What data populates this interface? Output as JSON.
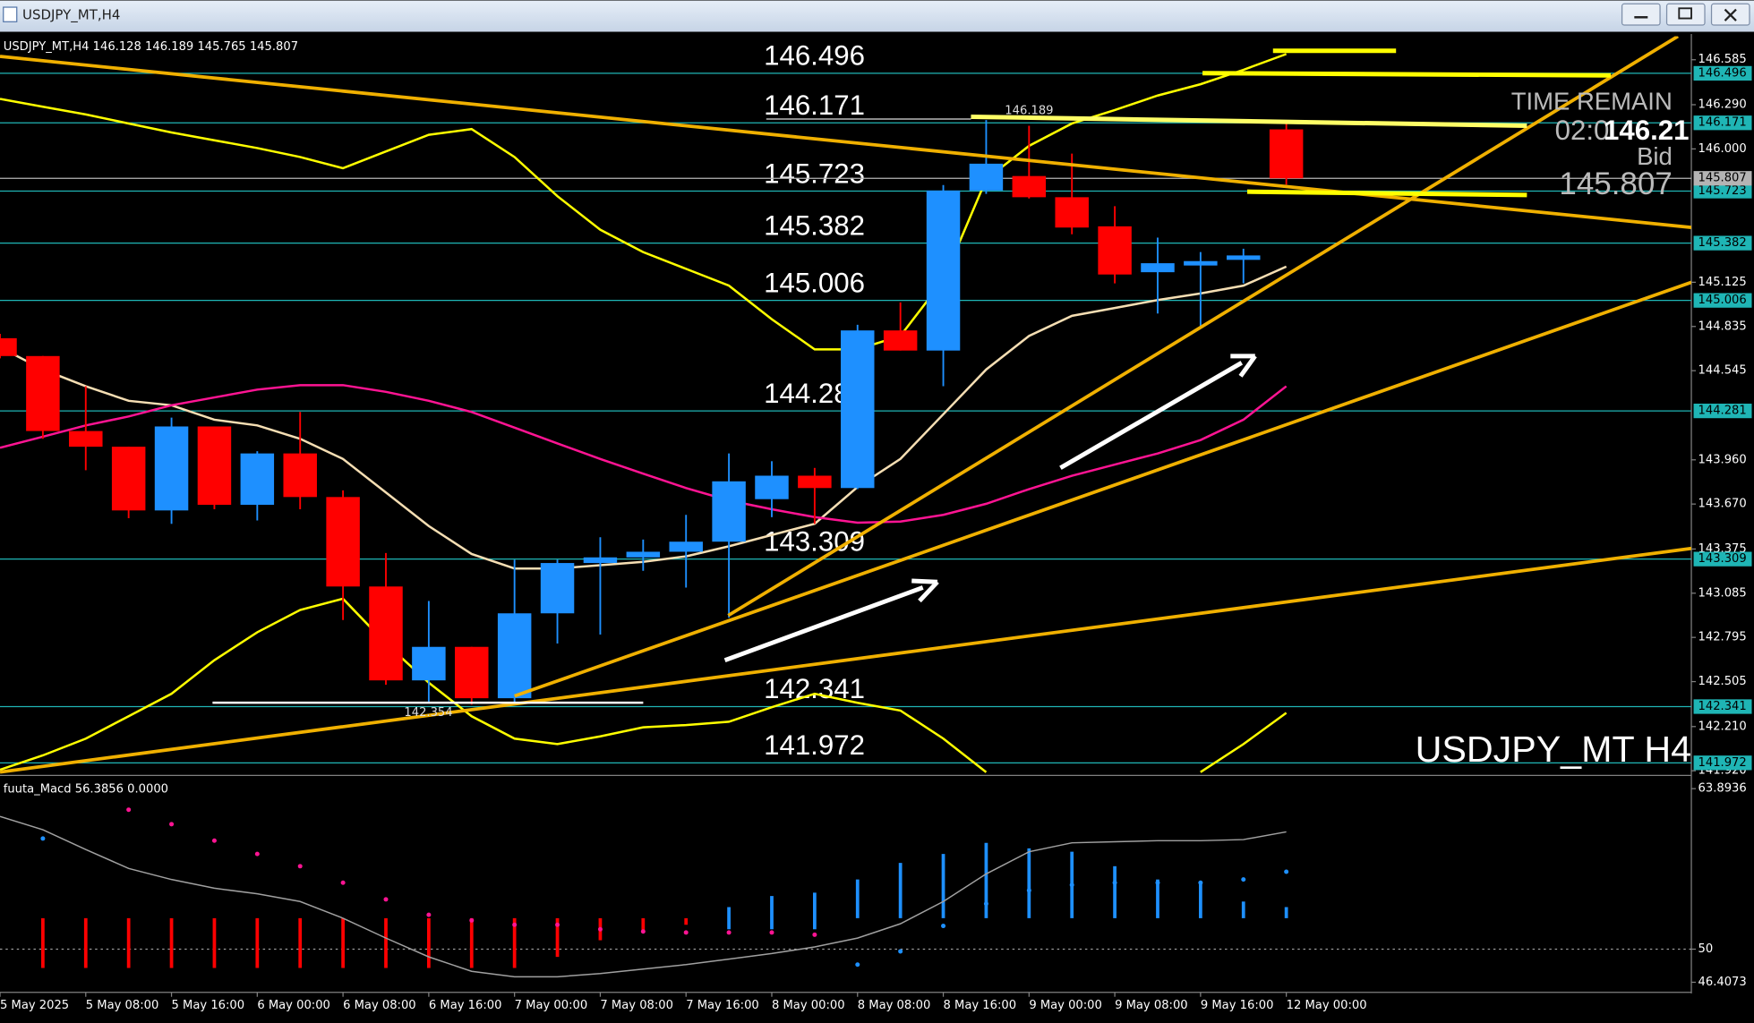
{
  "chart_data": {
    "type": "candlestick",
    "window_title": "USDJPY_MT,H4",
    "symbol": "USDJPY_MT,H4",
    "symbol_label": "USDJPY_MT H4",
    "categories": [
      "5 May 2025",
      null,
      "5 May 08:00",
      null,
      "5 May 16:00",
      null,
      "6 May 00:00",
      null,
      "6 May 08:00",
      null,
      "6 May 16:00",
      null,
      "7 May 00:00",
      null,
      "7 May 08:00",
      null,
      "7 May 16:00",
      null,
      "8 May 00:00",
      null,
      "8 May 08:00",
      null,
      "8 May 16:00",
      null,
      "9 May 00:00",
      null,
      "9 May 08:00",
      null,
      "9 May 16:00",
      null,
      "12 May 00:00"
    ],
    "open": [
      144.758,
      144.641,
      144.149,
      144.046,
      143.628,
      144.179,
      143.665,
      144.002,
      143.716,
      143.129,
      142.513,
      142.733,
      142.396,
      142.953,
      143.283,
      143.32,
      143.357,
      143.423,
      143.702,
      143.856,
      143.775,
      144.809,
      144.677,
      145.727,
      145.822,
      145.683,
      145.492,
      145.191,
      145.235,
      145.272,
      146.128
    ],
    "high": [
      144.787,
      144.641,
      144.443,
      144.046,
      144.237,
      144.179,
      144.017,
      144.274,
      143.76,
      143.349,
      143.034,
      142.733,
      143.305,
      143.305,
      143.452,
      143.437,
      143.599,
      144.002,
      143.951,
      143.907,
      144.846,
      144.993,
      145.763,
      146.189,
      146.152,
      145.969,
      145.624,
      145.418,
      145.323,
      145.345,
      146.189
    ],
    "low": [
      144.626,
      144.098,
      143.892,
      143.577,
      143.54,
      143.636,
      143.562,
      143.636,
      142.909,
      142.484,
      142.374,
      142.354,
      142.366,
      142.755,
      142.814,
      143.232,
      143.122,
      142.924,
      143.584,
      143.54,
      143.768,
      144.677,
      144.443,
      145.705,
      145.675,
      145.44,
      145.118,
      144.92,
      144.832,
      145.118,
      145.765
    ],
    "close": [
      144.641,
      144.149,
      144.046,
      143.628,
      144.179,
      143.665,
      144.002,
      143.716,
      143.129,
      142.513,
      142.733,
      142.396,
      142.953,
      143.283,
      143.32,
      143.357,
      143.423,
      143.819,
      143.856,
      143.775,
      144.809,
      144.677,
      145.727,
      145.903,
      145.683,
      145.484,
      145.176,
      145.25,
      145.264,
      145.301,
      145.807
    ],
    "up_color": "#1e90ff",
    "down_color": "#ff0000",
    "series": [
      {
        "color": "#f5deb3",
        "values": [
          144.699,
          144.553,
          144.443,
          144.347,
          144.318,
          144.223,
          144.186,
          144.098,
          143.966,
          143.746,
          143.526,
          143.342,
          143.247,
          143.247,
          143.269,
          143.291,
          143.327,
          143.393,
          143.467,
          143.54,
          143.782,
          143.966,
          144.259,
          144.553,
          144.773,
          144.905,
          144.956,
          145.008,
          145.052,
          145.103,
          145.228
        ]
      },
      {
        "color": "#ff1493",
        "values": [
          144.039,
          144.112,
          144.186,
          144.245,
          144.318,
          144.369,
          144.421,
          144.45,
          144.45,
          144.406,
          144.347,
          144.274,
          144.171,
          144.068,
          143.966,
          143.87,
          143.775,
          143.694,
          143.636,
          143.584,
          143.548,
          143.555,
          143.599,
          143.672,
          143.768,
          143.856,
          143.929,
          144.002,
          144.09,
          144.223,
          144.443
        ]
      },
      {
        "color": "#ffff00",
        "values": [
          146.328,
          146.277,
          146.226,
          146.167,
          146.108,
          146.057,
          146.005,
          145.947,
          145.873,
          145.983,
          146.093,
          146.13,
          145.947,
          145.69,
          145.47,
          145.323,
          145.213,
          145.103,
          144.883,
          144.685,
          144.685,
          144.773,
          145.14,
          145.8,
          146.02,
          146.167,
          146.255,
          146.35,
          146.424,
          146.519,
          146.622
        ]
      },
      {
        "color": "#ffff00",
        "values": [
          141.926,
          142.021,
          142.131,
          142.278,
          142.425,
          142.645,
          142.829,
          142.975,
          143.049,
          142.755,
          142.498,
          142.278,
          142.131,
          142.095,
          142.146,
          142.205,
          142.22,
          142.242,
          142.337,
          142.425,
          142.366,
          142.315,
          142.131,
          141.911,
          null,
          null,
          null,
          null,
          141.911,
          142.095,
          142.3
        ]
      }
    ],
    "ylim": [
      141.897,
      146.739
    ],
    "yticks": [
      146.585,
      {
        "value": 146.29,
        "label": "146.290"
      },
      {
        "value": 146.0,
        "label": "146.000"
      },
      145.125,
      144.835,
      144.545,
      {
        "value": 143.96,
        "label": "143.960"
      },
      {
        "value": 143.67,
        "label": "143.670"
      },
      143.375,
      143.085,
      142.795,
      142.505,
      {
        "value": 142.21,
        "label": "142.210"
      },
      {
        "value": 141.92,
        "label": "141.920"
      }
    ],
    "levels": [
      146.496,
      146.171,
      145.723,
      145.382,
      145.006,
      144.281,
      143.309,
      142.341,
      141.972
    ],
    "level_color": "#1fb5b5",
    "bid": 145.807,
    "bid_color": "#b4b4b4",
    "time_remain": {
      "label": "TIME REMAIN",
      "time": "02:0",
      "price": 146.21,
      "bid_label": "Bid"
    },
    "indicator": {
      "name": "fuuta_Macd",
      "values": [
        56.3856,
        {
          "value": 0,
          "label": "0.0000"
        }
      ],
      "ylim": [
        46.36,
        64.75
      ],
      "yticks": [
        63.8936,
        50,
        46.4073
      ],
      "bars_high": [
        null,
        52.68,
        52.68,
        52.68,
        52.68,
        52.68,
        52.68,
        52.68,
        52.68,
        52.68,
        52.68,
        52.68,
        52.68,
        52.68,
        52.68,
        52.68,
        52.68,
        53.64,
        54.6,
        54.89,
        56.03,
        57.47,
        58.24,
        59.2,
        58.72,
        58.43,
        57.18,
        56.03,
        55.75,
        54.12,
        53.64
      ],
      "bars_low": [
        null,
        48.37,
        48.37,
        48.37,
        48.37,
        48.37,
        48.37,
        48.37,
        48.37,
        48.37,
        48.37,
        48.37,
        48.37,
        49.33,
        50.77,
        51.44,
        52.11,
        51.72,
        51.72,
        51.72,
        52.68,
        52.68,
        52.68,
        52.68,
        52.68,
        52.68,
        52.68,
        52.68,
        52.68,
        52.68,
        52.68
      ],
      "bar_colors": [
        null,
        "#ff0000",
        "#ff0000",
        "#ff0000",
        "#ff0000",
        "#ff0000",
        "#ff0000",
        "#ff0000",
        "#ff0000",
        "#ff0000",
        "#ff0000",
        "#ff0000",
        "#ff0000",
        "#ff0000",
        "#ff0000",
        "#ff0000",
        "#ff0000",
        "#1e90ff",
        "#1e90ff",
        "#1e90ff",
        "#1e90ff",
        "#1e90ff",
        "#1e90ff",
        "#1e90ff",
        "#1e90ff",
        "#1e90ff",
        "#1e90ff",
        "#1e90ff",
        "#1e90ff",
        "#1e90ff",
        "#1e90ff"
      ],
      "dots": [
        null,
        59.58,
        null,
        62.07,
        60.82,
        59.39,
        58.24,
        57.18,
        55.75,
        54.31,
        52.97,
        52.49,
        52.11,
        52.11,
        51.72,
        51.53,
        51.44,
        51.44,
        51.44,
        51.25,
        48.66,
        49.81,
        52.01,
        53.93,
        55.08,
        55.56,
        55.75,
        55.75,
        55.75,
        56.03,
        56.7
      ],
      "dot_colors": [
        null,
        "#1e90ff",
        null,
        "#ff1493",
        "#ff1493",
        "#ff1493",
        "#ff1493",
        "#ff1493",
        "#ff1493",
        "#ff1493",
        "#ff1493",
        "#ff1493",
        "#ff1493",
        "#ff1493",
        "#ff1493",
        "#ff1493",
        "#ff1493",
        "#ff1493",
        "#ff1493",
        "#ff1493",
        "#1e90ff",
        "#1e90ff",
        "#1e90ff",
        "#1e90ff",
        "#1e90ff",
        "#1e90ff",
        "#1e90ff",
        "#1e90ff",
        "#1e90ff",
        "#1e90ff",
        "#1e90ff"
      ],
      "signal": [
        61.49,
        60.34,
        58.62,
        56.99,
        56.03,
        55.27,
        54.79,
        54.12,
        52.68,
        50.96,
        49.33,
        48.08,
        47.61,
        47.61,
        47.89,
        48.28,
        48.66,
        49.14,
        49.62,
        50.19,
        50.96,
        52.2,
        54.12,
        56.51,
        58.43,
        59.2,
        59.29,
        59.39,
        59.39,
        59.48,
        60.15
      ],
      "signal_color": "#a0a0a0"
    }
  }
}
